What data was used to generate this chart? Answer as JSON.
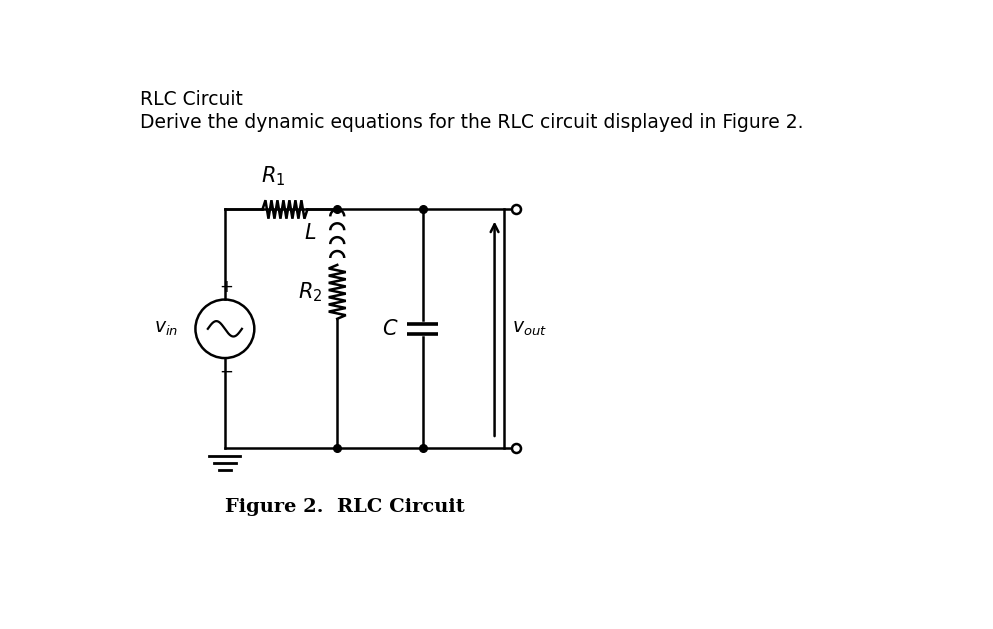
{
  "title_line1": "RLC Circuit",
  "title_line2": "Derive the dynamic equations for the RLC circuit displayed in Figure 2.",
  "figure_caption": "Figure 2.  RLC Circuit",
  "bg_color": "#ffffff",
  "line_color": "#000000",
  "line_width": 1.8,
  "fig_width": 9.93,
  "fig_height": 6.29,
  "dpi": 100
}
